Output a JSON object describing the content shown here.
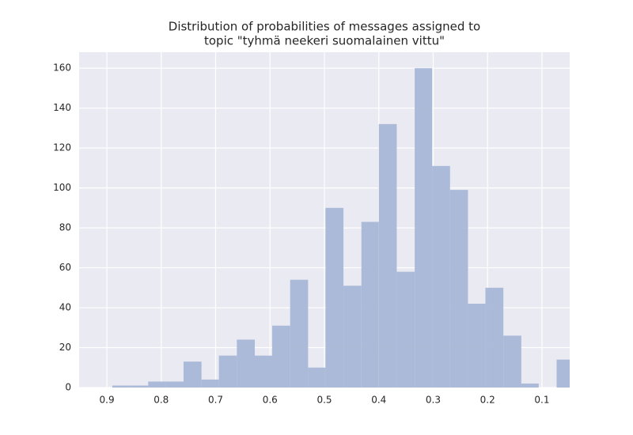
{
  "chart_data": {
    "type": "histogram",
    "title": [
      "Distribution of probabilities of messages assigned to",
      "topic \"tyhmä neekeri suomalainen vittu\""
    ],
    "bins": [
      0.89,
      0.857,
      0.824,
      0.792,
      0.759,
      0.726,
      0.694,
      0.661,
      0.628,
      0.596,
      0.563,
      0.53,
      0.498,
      0.465,
      0.432,
      0.4,
      0.367,
      0.334,
      0.302,
      0.269,
      0.236,
      0.204,
      0.171,
      0.138,
      0.106,
      0.073,
      0.04
    ],
    "values": [
      1,
      1,
      3,
      3,
      13,
      4,
      16,
      24,
      16,
      31,
      54,
      10,
      90,
      51,
      83,
      132,
      58,
      160,
      111,
      99,
      42,
      50,
      26,
      2,
      0,
      14
    ],
    "color": "#a8b7d6",
    "xlim": [
      0.951,
      0.049
    ],
    "ylim": [
      0,
      168
    ],
    "xticks": [
      0.9,
      0.8,
      0.7,
      0.6,
      0.5,
      0.4,
      0.3,
      0.2,
      0.1
    ],
    "yticks": [
      0,
      20,
      40,
      60,
      80,
      100,
      120,
      140,
      160
    ],
    "grid": true
  }
}
